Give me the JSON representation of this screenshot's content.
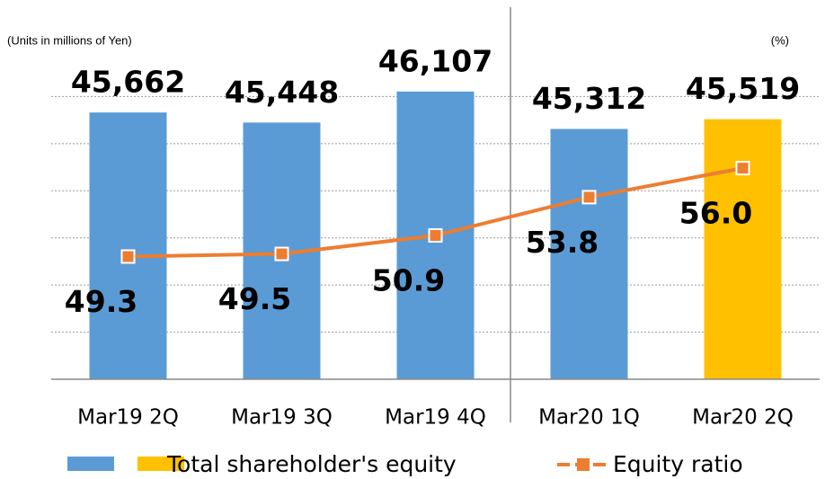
{
  "chart_data": {
    "type": "bar_line",
    "y_axis_label": "(Units in millions of Yen)",
    "y2_axis_label": "(%)",
    "categories": [
      "Mar19 2Q",
      "Mar19 3Q",
      "Mar19 4Q",
      "Mar20 1Q",
      "Mar20 2Q"
    ],
    "series": [
      {
        "name": "Total shareholder's equity",
        "type": "bar",
        "colors": [
          "#5b9bd5",
          "#5b9bd5",
          "#5b9bd5",
          "#5b9bd5",
          "#ffc000"
        ],
        "legend_colors": [
          "#5b9bd5",
          "#ffc000"
        ],
        "values": [
          45662,
          45448,
          46107,
          45312,
          45519
        ],
        "value_labels": [
          "45,662",
          "45,448",
          "46,107",
          "45,312",
          "45,519"
        ]
      },
      {
        "name": "Equity ratio",
        "type": "line",
        "axis": "y2",
        "color": "#ed7d31",
        "values": [
          49.3,
          49.5,
          50.9,
          53.8,
          56.0
        ],
        "value_labels": [
          "49.3",
          "49.5",
          "50.9",
          "53.8",
          "56.0"
        ]
      }
    ],
    "ylim": [
      40000,
      47000
    ],
    "yticks": [
      41000,
      42000,
      43000,
      44000,
      45000,
      46000
    ],
    "y2lim": [
      40,
      65
    ],
    "grid": true
  }
}
